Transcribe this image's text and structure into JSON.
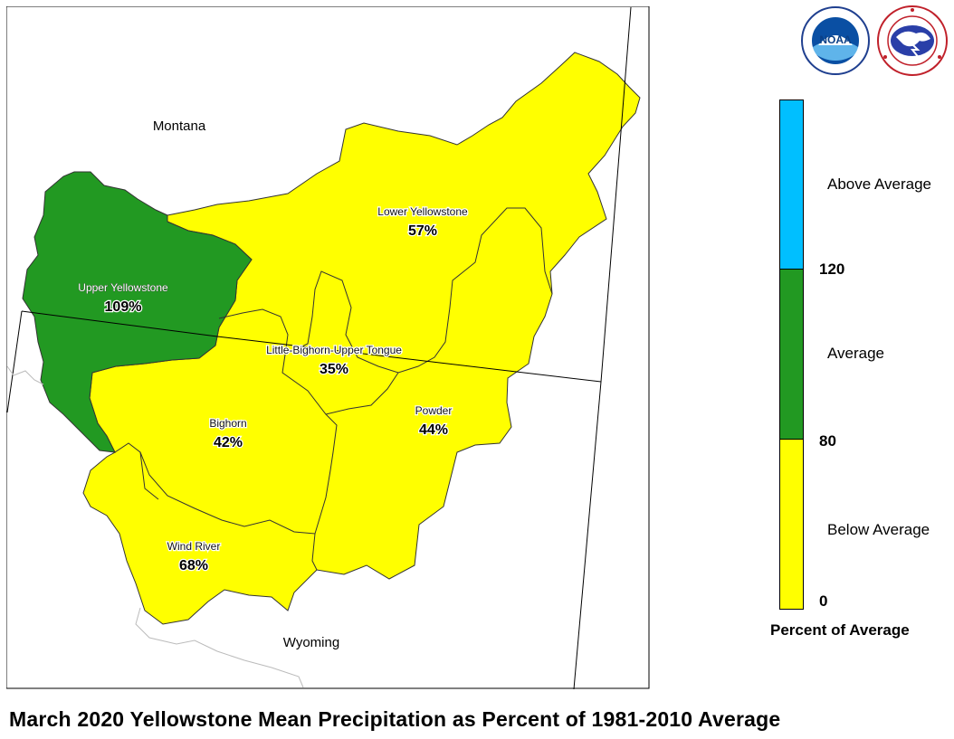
{
  "title": "March 2020 Yellowstone Mean Precipitation as Percent of 1981-2010 Average",
  "map": {
    "states": [
      {
        "name": "Montana"
      },
      {
        "name": "Wyoming"
      }
    ],
    "basins": [
      {
        "name": "Upper Yellowstone",
        "percent": 109,
        "percent_label": "109%",
        "category": "Average"
      },
      {
        "name": "Lower Yellowstone",
        "percent": 57,
        "percent_label": "57%",
        "category": "Below Average"
      },
      {
        "name": "Little-Bighorn-Upper Tongue",
        "percent": 35,
        "percent_label": "35%",
        "category": "Below Average"
      },
      {
        "name": "Bighorn",
        "percent": 42,
        "percent_label": "42%",
        "category": "Below Average"
      },
      {
        "name": "Powder",
        "percent": 44,
        "percent_label": "44%",
        "category": "Below Average"
      },
      {
        "name": "Wind River",
        "percent": 68,
        "percent_label": "68%",
        "category": "Below Average"
      }
    ]
  },
  "legend": {
    "title": "Percent of Average",
    "categories": [
      {
        "label": "Above Average",
        "color": "#00bfff"
      },
      {
        "label": "Average",
        "color": "#229922"
      },
      {
        "label": "Below Average",
        "color": "#ffff00"
      }
    ],
    "breaks": [
      "120",
      "80",
      "0"
    ]
  },
  "logos": [
    {
      "name": "NOAA",
      "text": "NOAA",
      "ring_text": "NATIONAL OCEANIC AND ATMOSPHERIC ADMINISTRATION · U.S. DEPARTMENT OF COMMERCE"
    },
    {
      "name": "National Weather Service",
      "ring_text": "NATIONAL WEATHER SERVICE"
    }
  ],
  "colors": {
    "below_average": "#ffff00",
    "average": "#229922",
    "above_average": "#00bfff",
    "basin_outline": "#333333"
  }
}
